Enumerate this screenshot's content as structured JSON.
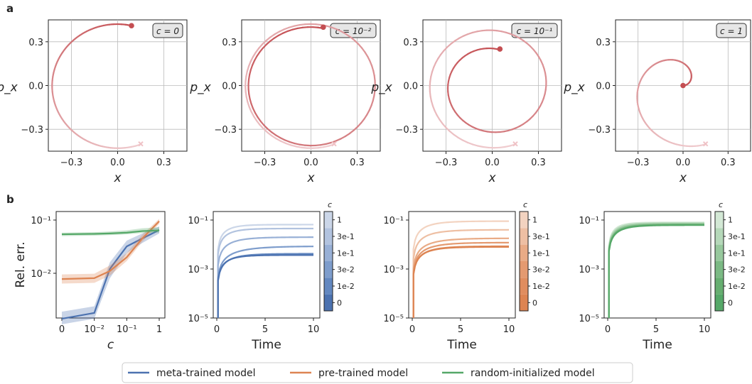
{
  "panel_labels": [
    "a",
    "b"
  ],
  "colors": {
    "meta": "#4c72b0",
    "pre": "#dd8452",
    "random": "#55a868",
    "traj": "#c44e52"
  },
  "legend": {
    "items": [
      {
        "label": "meta-trained model",
        "color": "#4c72b0"
      },
      {
        "label": "pre-trained model",
        "color": "#dd8452"
      },
      {
        "label": "random-initialized model",
        "color": "#55a868"
      }
    ]
  },
  "chart_data": [
    {
      "type": "line",
      "panel": "a",
      "xlabel": "x",
      "ylabel": "p_x",
      "xlim": [
        -0.45,
        0.45
      ],
      "ylim": [
        -0.45,
        0.45
      ],
      "xticks": [
        "−0.3",
        "0.0",
        "0.3"
      ],
      "yticks": [
        "0.3",
        "0.0",
        "−0.3"
      ],
      "grid": true,
      "badge": "c = 0",
      "trajectory": {
        "start": [
          0.15,
          -0.4
        ],
        "end": [
          0.09,
          0.41
        ],
        "radius_start": 0.43,
        "radius_end": 0.42,
        "turns": 1.05
      }
    },
    {
      "type": "line",
      "panel": "a",
      "xlabel": "x",
      "ylabel": "p_x",
      "xlim": [
        -0.45,
        0.45
      ],
      "ylim": [
        -0.45,
        0.45
      ],
      "xticks": [
        "−0.3",
        "0.0",
        "0.3"
      ],
      "yticks": [
        "0.3",
        "0.0",
        "−0.3"
      ],
      "grid": true,
      "badge": "c = 10⁻²",
      "trajectory": {
        "start": [
          0.15,
          -0.4
        ],
        "end": [
          0.08,
          0.4
        ],
        "radius_start": 0.43,
        "radius_end": 0.4,
        "turns": 1.6
      }
    },
    {
      "type": "line",
      "panel": "a",
      "xlabel": "x",
      "ylabel": "p_x",
      "xlim": [
        -0.45,
        0.45
      ],
      "ylim": [
        -0.45,
        0.45
      ],
      "xticks": [
        "−0.3",
        "0.0",
        "0.3"
      ],
      "yticks": [
        "0.3",
        "0.0",
        "−0.3"
      ],
      "grid": true,
      "badge": "c = 10⁻¹",
      "trajectory": {
        "start": [
          0.15,
          -0.4
        ],
        "end": [
          0.05,
          0.25
        ],
        "radius_start": 0.43,
        "radius_end": 0.25,
        "turns": 1.3
      }
    },
    {
      "type": "line",
      "panel": "a",
      "xlabel": "x",
      "ylabel": "p_x",
      "xlim": [
        -0.45,
        0.45
      ],
      "ylim": [
        -0.45,
        0.45
      ],
      "xticks": [
        "−0.3",
        "0.0",
        "0.3"
      ],
      "yticks": [
        "0.3",
        "0.0",
        "−0.3"
      ],
      "grid": true,
      "badge": "c = 1",
      "trajectory": {
        "start": [
          0.15,
          -0.4
        ],
        "end": [
          0.0,
          0.0
        ],
        "radius_start": 0.43,
        "radius_end": 0.0,
        "turns": 1.1
      }
    },
    {
      "type": "line",
      "panel": "b",
      "xlabel": "c",
      "ylabel": "Rel. err.",
      "x": [
        "0",
        "10⁻²",
        "10⁻¹",
        "1"
      ],
      "xticks": [
        "0",
        "10⁻²",
        "10⁻¹",
        "1"
      ],
      "yticks": [
        "10⁻¹",
        "10⁻²"
      ],
      "ylim": [
        0.001,
        0.1
      ],
      "log_y": true,
      "series": [
        {
          "name": "meta-trained model",
          "x": [
            0,
            0.01,
            0.03,
            0.1,
            0.3,
            1
          ],
          "y": [
            0.0014,
            0.0018,
            0.012,
            0.032,
            0.045,
            0.065
          ],
          "band": [
            [
              0.0011,
              0.0019
            ],
            [
              0.0014,
              0.0024
            ],
            [
              0.008,
              0.016
            ],
            [
              0.024,
              0.041
            ],
            [
              0.037,
              0.056
            ],
            [
              0.056,
              0.076
            ]
          ]
        },
        {
          "name": "pre-trained model",
          "x": [
            0,
            0.01,
            0.03,
            0.1,
            0.3,
            1
          ],
          "y": [
            0.0078,
            0.0081,
            0.011,
            0.02,
            0.045,
            0.095
          ],
          "band": [
            [
              0.0064,
              0.0095
            ],
            [
              0.0066,
              0.0098
            ],
            [
              0.009,
              0.014
            ],
            [
              0.017,
              0.024
            ],
            [
              0.039,
              0.053
            ],
            [
              0.085,
              0.105
            ]
          ]
        },
        {
          "name": "random-initialized model",
          "x": [
            0,
            0.01,
            0.03,
            0.1,
            0.3,
            1
          ],
          "y": [
            0.054,
            0.055,
            0.056,
            0.058,
            0.062,
            0.064
          ],
          "band": [
            [
              0.05,
              0.058
            ],
            [
              0.051,
              0.059
            ],
            [
              0.052,
              0.061
            ],
            [
              0.054,
              0.064
            ],
            [
              0.057,
              0.07
            ],
            [
              0.058,
              0.073
            ]
          ]
        }
      ]
    },
    {
      "type": "line",
      "panel": "b",
      "model": "meta-trained model",
      "xlabel": "Time",
      "xlim": [
        0,
        10
      ],
      "xticks": [
        "0",
        "5",
        "10"
      ],
      "ylim": [
        1e-05,
        0.1
      ],
      "log_y": true,
      "yticks": [
        "10⁻¹",
        "10⁻³",
        "10⁻⁵"
      ],
      "colorbar": {
        "title": "c",
        "labels": [
          "1",
          "3e-1",
          "1e-1",
          "3e-2",
          "1e-2",
          "0"
        ],
        "colors": [
          "#cbd6e8",
          "#b2c3df",
          "#98b0d6",
          "#7e9dcc",
          "#6388c0",
          "#4c72b0"
        ]
      },
      "series": [
        {
          "c": "1",
          "final": 0.065,
          "tau": 1.2
        },
        {
          "c": "3e-1",
          "final": 0.045,
          "tau": 1.3
        },
        {
          "c": "1e-1",
          "final": 0.02,
          "tau": 1.7
        },
        {
          "c": "3e-2",
          "final": 0.0085,
          "tau": 2.4
        },
        {
          "c": "1e-2",
          "final": 0.0042,
          "tau": 1.6
        },
        {
          "c": "0",
          "final": 0.0037,
          "tau": 1.3
        }
      ]
    },
    {
      "type": "line",
      "panel": "b",
      "model": "pre-trained model",
      "xlabel": "Time",
      "xlim": [
        0,
        10
      ],
      "xticks": [
        "0",
        "5",
        "10"
      ],
      "ylim": [
        1e-05,
        0.1
      ],
      "log_y": true,
      "yticks": [
        "10⁻¹",
        "10⁻³",
        "10⁻⁵"
      ],
      "colorbar": {
        "title": "c",
        "labels": [
          "1",
          "3e-1",
          "1e-1",
          "3e-2",
          "1e-2",
          "0"
        ],
        "colors": [
          "#f3d3c0",
          "#eebfa3",
          "#e9ab86",
          "#e49a70",
          "#e08d5f",
          "#dd8452"
        ]
      },
      "series": [
        {
          "c": "1",
          "final": 0.09,
          "tau": 1.6
        },
        {
          "c": "3e-1",
          "final": 0.04,
          "tau": 1.8
        },
        {
          "c": "1e-1",
          "final": 0.018,
          "tau": 2.0
        },
        {
          "c": "3e-2",
          "final": 0.012,
          "tau": 1.9
        },
        {
          "c": "1e-2",
          "final": 0.0085,
          "tau": 1.7
        },
        {
          "c": "0",
          "final": 0.008,
          "tau": 1.6
        }
      ]
    },
    {
      "type": "line",
      "panel": "b",
      "model": "random-initialized model",
      "xlabel": "Time",
      "xlim": [
        0,
        10
      ],
      "xticks": [
        "0",
        "5",
        "10"
      ],
      "ylim": [
        1e-05,
        0.1
      ],
      "log_y": true,
      "yticks": [
        "10⁻¹",
        "10⁻³",
        "10⁻⁵"
      ],
      "colorbar": {
        "title": "c",
        "labels": [
          "1",
          "3e-1",
          "1e-1",
          "3e-2",
          "1e-2",
          "0"
        ],
        "colors": [
          "#d3e8d5",
          "#b5d8b9",
          "#97c89d",
          "#7bb984",
          "#66ae70",
          "#55a868"
        ]
      },
      "series": [
        {
          "c": "1",
          "final": 0.08,
          "tau": 1.0
        },
        {
          "c": "3e-1",
          "final": 0.075,
          "tau": 1.1
        },
        {
          "c": "1e-1",
          "final": 0.07,
          "tau": 1.2
        },
        {
          "c": "3e-2",
          "final": 0.066,
          "tau": 1.3
        },
        {
          "c": "1e-2",
          "final": 0.063,
          "tau": 1.35
        },
        {
          "c": "0",
          "final": 0.062,
          "tau": 1.4
        }
      ]
    }
  ]
}
